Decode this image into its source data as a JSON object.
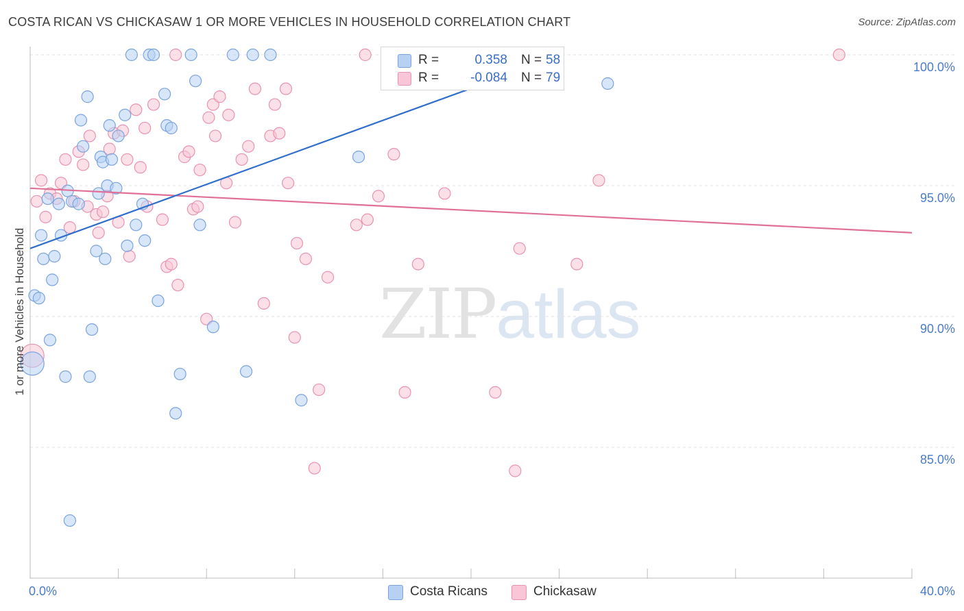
{
  "header": {
    "title": "COSTA RICAN VS CHICKASAW 1 OR MORE VEHICLES IN HOUSEHOLD CORRELATION CHART",
    "source": "Source: ZipAtlas.com"
  },
  "watermark": {
    "zip": "ZIP",
    "atlas": "atlas"
  },
  "legend": {
    "rows": [
      {
        "r_label": "R =",
        "r_value": "0.358",
        "n_label": "N =",
        "n_value": "58"
      },
      {
        "r_label": "R =",
        "r_value": "-0.084",
        "n_label": "N =",
        "n_value": "79"
      }
    ]
  },
  "chart_data": {
    "type": "scatter",
    "title": "COSTA RICAN VS CHICKASAW 1 OR MORE VEHICLES IN HOUSEHOLD CORRELATION CHART",
    "ylabel": "1 or more Vehicles in Household",
    "xlabel": "",
    "xlim": [
      0,
      40
    ],
    "ylim": [
      80.5,
      101
    ],
    "x_tick_labels": [
      {
        "x": 0,
        "label": "0.0%"
      },
      {
        "x": 40,
        "label": "40.0%"
      }
    ],
    "y_tick_labels": [
      {
        "y": 100,
        "label": "100.0%"
      },
      {
        "y": 95,
        "label": "95.0%"
      },
      {
        "y": 90,
        "label": "90.0%"
      },
      {
        "y": 85,
        "label": "85.0%"
      }
    ],
    "grid": true,
    "legend_placement": "top-center",
    "colors": {
      "costa_fill": "#b7d1f2",
      "costa_stroke": "#7aa3df",
      "costa_line": "#2f6fcb",
      "chick_fill": "#f8c6d6",
      "chick_stroke": "#e992b1",
      "chick_line": "#e07098"
    },
    "series": [
      {
        "name": "Costa Ricans",
        "R": 0.358,
        "N": 58,
        "trend": {
          "x": [
            0,
            24.2
          ],
          "y": [
            92.6,
            100.0
          ]
        },
        "points": [
          [
            0.1,
            88.2
          ],
          [
            0.2,
            90.8
          ],
          [
            0.4,
            90.7
          ],
          [
            0.5,
            93.1
          ],
          [
            0.6,
            92.2
          ],
          [
            0.8,
            94.5
          ],
          [
            0.9,
            89.1
          ],
          [
            1.0,
            91.4
          ],
          [
            1.1,
            92.3
          ],
          [
            1.3,
            94.3
          ],
          [
            1.4,
            93.1
          ],
          [
            1.6,
            87.7
          ],
          [
            1.7,
            94.8
          ],
          [
            1.8,
            82.2
          ],
          [
            1.9,
            94.4
          ],
          [
            2.2,
            94.3
          ],
          [
            2.3,
            97.5
          ],
          [
            2.4,
            96.5
          ],
          [
            2.6,
            98.4
          ],
          [
            2.7,
            87.7
          ],
          [
            2.8,
            89.5
          ],
          [
            3.0,
            92.5
          ],
          [
            3.1,
            94.7
          ],
          [
            3.2,
            96.1
          ],
          [
            3.3,
            95.9
          ],
          [
            3.4,
            92.2
          ],
          [
            3.5,
            95.0
          ],
          [
            3.6,
            97.3
          ],
          [
            3.7,
            96.0
          ],
          [
            3.9,
            94.9
          ],
          [
            4.0,
            96.9
          ],
          [
            4.3,
            97.7
          ],
          [
            4.4,
            92.7
          ],
          [
            4.6,
            100.0
          ],
          [
            4.8,
            93.5
          ],
          [
            5.1,
            94.3
          ],
          [
            5.2,
            92.9
          ],
          [
            5.4,
            100.0
          ],
          [
            5.6,
            100.0
          ],
          [
            5.8,
            90.6
          ],
          [
            6.1,
            98.5
          ],
          [
            6.2,
            97.3
          ],
          [
            6.4,
            97.2
          ],
          [
            6.6,
            86.3
          ],
          [
            6.8,
            87.8
          ],
          [
            7.3,
            100.0
          ],
          [
            7.5,
            99.0
          ],
          [
            7.7,
            93.5
          ],
          [
            8.3,
            89.6
          ],
          [
            9.2,
            100.0
          ],
          [
            9.8,
            87.9
          ],
          [
            10.1,
            100.0
          ],
          [
            10.9,
            100.0
          ],
          [
            12.3,
            86.8
          ],
          [
            14.9,
            96.1
          ],
          [
            16.3,
            100.0
          ],
          [
            18.5,
            100.0
          ],
          [
            26.2,
            98.9
          ]
        ]
      },
      {
        "name": "Chickasaw",
        "R": -0.084,
        "N": 79,
        "trend": {
          "x": [
            0,
            40
          ],
          "y": [
            94.9,
            93.2
          ]
        },
        "points": [
          [
            0.1,
            88.5
          ],
          [
            0.3,
            94.4
          ],
          [
            0.5,
            95.2
          ],
          [
            0.7,
            93.8
          ],
          [
            0.9,
            94.7
          ],
          [
            1.2,
            94.5
          ],
          [
            1.4,
            95.1
          ],
          [
            1.6,
            96.0
          ],
          [
            1.8,
            93.4
          ],
          [
            2.0,
            94.4
          ],
          [
            2.2,
            96.3
          ],
          [
            2.4,
            95.8
          ],
          [
            2.6,
            94.2
          ],
          [
            2.7,
            96.9
          ],
          [
            3.0,
            93.9
          ],
          [
            3.1,
            93.2
          ],
          [
            3.3,
            94.0
          ],
          [
            3.5,
            94.6
          ],
          [
            3.6,
            96.4
          ],
          [
            3.8,
            97.0
          ],
          [
            4.0,
            93.6
          ],
          [
            4.2,
            97.1
          ],
          [
            4.4,
            96.0
          ],
          [
            4.5,
            92.3
          ],
          [
            4.8,
            97.9
          ],
          [
            5.0,
            95.7
          ],
          [
            5.2,
            97.2
          ],
          [
            5.3,
            94.2
          ],
          [
            5.6,
            98.1
          ],
          [
            6.0,
            93.7
          ],
          [
            6.2,
            91.9
          ],
          [
            6.4,
            92.0
          ],
          [
            6.6,
            100.0
          ],
          [
            6.7,
            91.2
          ],
          [
            7.0,
            96.1
          ],
          [
            7.2,
            96.3
          ],
          [
            7.4,
            94.1
          ],
          [
            7.6,
            94.2
          ],
          [
            7.7,
            95.6
          ],
          [
            8.0,
            89.9
          ],
          [
            8.1,
            97.6
          ],
          [
            8.3,
            98.1
          ],
          [
            8.4,
            96.9
          ],
          [
            8.6,
            98.4
          ],
          [
            8.9,
            95.1
          ],
          [
            9.0,
            97.7
          ],
          [
            9.3,
            93.6
          ],
          [
            9.6,
            96.0
          ],
          [
            9.9,
            96.5
          ],
          [
            10.2,
            98.7
          ],
          [
            10.6,
            90.5
          ],
          [
            10.9,
            96.9
          ],
          [
            11.1,
            98.1
          ],
          [
            11.3,
            97.0
          ],
          [
            11.6,
            98.7
          ],
          [
            11.7,
            95.1
          ],
          [
            12.0,
            89.2
          ],
          [
            12.1,
            92.8
          ],
          [
            12.5,
            92.2
          ],
          [
            12.9,
            84.2
          ],
          [
            13.1,
            87.2
          ],
          [
            13.5,
            91.5
          ],
          [
            14.8,
            93.5
          ],
          [
            15.2,
            100.0
          ],
          [
            15.3,
            93.7
          ],
          [
            15.8,
            94.6
          ],
          [
            16.5,
            96.2
          ],
          [
            17.0,
            87.1
          ],
          [
            17.6,
            92.0
          ],
          [
            18.5,
            100.0
          ],
          [
            18.8,
            94.7
          ],
          [
            20.0,
            100.0
          ],
          [
            21.1,
            87.1
          ],
          [
            22.0,
            84.1
          ],
          [
            22.2,
            92.6
          ],
          [
            23.5,
            100.0
          ],
          [
            24.8,
            92.0
          ],
          [
            25.8,
            95.2
          ],
          [
            36.7,
            100.0
          ]
        ]
      }
    ]
  }
}
